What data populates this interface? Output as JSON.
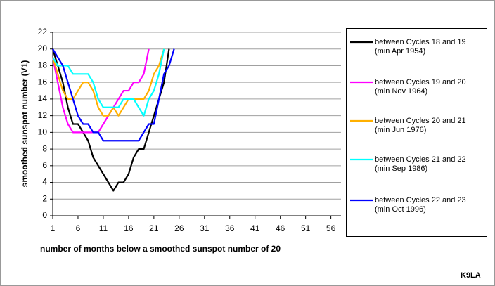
{
  "chart_data": {
    "type": "line",
    "y_axis_label": "smoothed sunspot number (V1)",
    "x_axis_label": "number of months below a smoothed sunspot number of 20",
    "annotation": "K9LA",
    "x": [
      1,
      2,
      3,
      4,
      5,
      6,
      7,
      8,
      9,
      10,
      11,
      12,
      13,
      14,
      15,
      16,
      17,
      18,
      19,
      20,
      21,
      22,
      23,
      24,
      25
    ],
    "xlim": [
      1,
      58
    ],
    "xticks": [
      1,
      6,
      11,
      16,
      21,
      26,
      31,
      36,
      41,
      46,
      51,
      56
    ],
    "ylim": [
      0,
      22
    ],
    "yticks": [
      0,
      2,
      4,
      6,
      8,
      10,
      12,
      14,
      16,
      18,
      20,
      22
    ],
    "grid": true,
    "series": [
      {
        "name": "between Cycles 18 and 19",
        "note": "(min Apr 1954)",
        "color": "#000000",
        "values": [
          20,
          18,
          16,
          13,
          11,
          11,
          10,
          9,
          7,
          6,
          5,
          4,
          3,
          4,
          4,
          5,
          7,
          8,
          8,
          10,
          12,
          14,
          16,
          20,
          null
        ]
      },
      {
        "name": "between Cycles 19 and 20",
        "note": "(min Nov 1964)",
        "color": "#ff00ff",
        "values": [
          19,
          16,
          13,
          11,
          10,
          10,
          10,
          10,
          10,
          10,
          11,
          12,
          13,
          14,
          15,
          15,
          16,
          16,
          17,
          20,
          null,
          null,
          null,
          null,
          null
        ]
      },
      {
        "name": "between Cycles 20 and 21",
        "note": "(min Jun 1976)",
        "color": "#ffb000",
        "values": [
          19,
          17,
          15,
          14,
          14,
          15,
          16,
          16,
          15,
          13,
          12,
          12,
          13,
          12,
          13,
          14,
          14,
          14,
          14,
          15,
          17,
          18,
          20,
          null,
          null
        ]
      },
      {
        "name": "between Cycles 21 and 22",
        "note": "(min Sep 1986)",
        "color": "#00ffff",
        "values": [
          19,
          18,
          18,
          18,
          17,
          17,
          17,
          17,
          16,
          14,
          13,
          13,
          13,
          13,
          14,
          14,
          14,
          13,
          12,
          14,
          15,
          17,
          20,
          null,
          null
        ]
      },
      {
        "name": "between Cycles 22 and 23",
        "note": "(min Oct 1996)",
        "color": "#0000ff",
        "values": [
          20,
          19,
          18,
          16,
          14,
          12,
          11,
          11,
          10,
          10,
          9,
          9,
          9,
          9,
          9,
          9,
          9,
          9,
          10,
          11,
          11,
          14,
          17,
          18,
          20
        ]
      }
    ]
  }
}
